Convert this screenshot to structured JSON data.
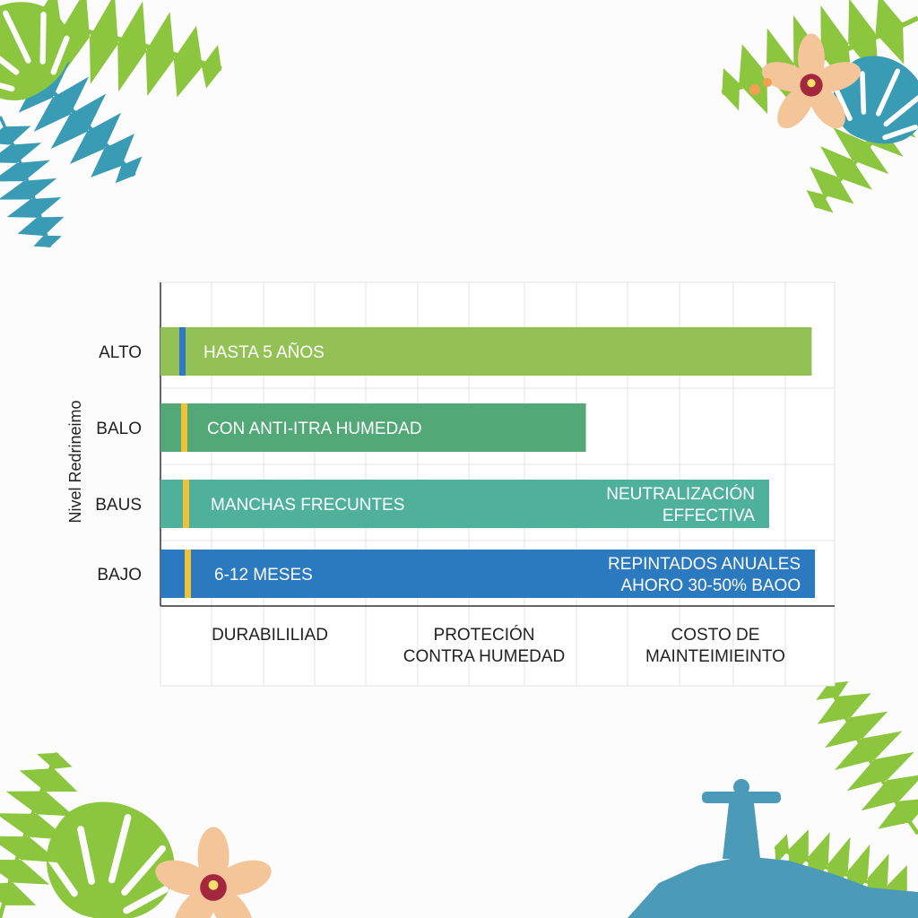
{
  "chart_data": {
    "type": "bar",
    "orientation": "horizontal",
    "ylabel": "Nivel Redrineimo",
    "xlabel": "",
    "categories": [
      "ALTO",
      "BALO",
      "BAUS",
      "BAJO"
    ],
    "values": [
      9.95,
      6.5,
      9.3,
      10.0
    ],
    "xlim": [
      0,
      10.3
    ],
    "grid": true,
    "x_group_labels": [
      [
        "DURABILILIAD"
      ],
      [
        "PROTECIÓN",
        "CONTRA HUMEDAD"
      ],
      [
        "COSTO DE",
        "MAINTEIMIEINTO"
      ]
    ],
    "bars": [
      {
        "category": "ALTO",
        "color": "#93c155",
        "marker_color": "#2f78c4",
        "label_left": [
          "HASTA 5 AÑOS"
        ],
        "label_right": []
      },
      {
        "category": "BALO",
        "color": "#52a877",
        "marker_color": "#f0c23a",
        "label_left": [
          "CON ANTI-ITRA HUMEDAD"
        ],
        "label_right": []
      },
      {
        "category": "BAUS",
        "color": "#4fb09c",
        "marker_color": "#f0c23a",
        "label_left": [
          "MANCHAS FRECUNTES"
        ],
        "label_right": [
          "NEUTRALIZACIÓN",
          "EFFECTIVA"
        ]
      },
      {
        "category": "BAJO",
        "color": "#2b79be",
        "marker_color": "#f0c23a",
        "label_left": [
          "6-12 MESES"
        ],
        "label_right": [
          "REPINTADOS ANUALES",
          "AHORO 30-50% BAOO"
        ]
      }
    ]
  },
  "decoration": {
    "icons": [
      "palm-leaf-icon",
      "monstera-leaf-icon",
      "orchid-flower-icon",
      "christ-the-redeemer-statue-icon"
    ],
    "colors": {
      "leaf_green": "#8cc63f",
      "leaf_teal": "#3a9bb5",
      "flower_peach": "#f5c59a",
      "flower_center": "#a3283e"
    }
  }
}
